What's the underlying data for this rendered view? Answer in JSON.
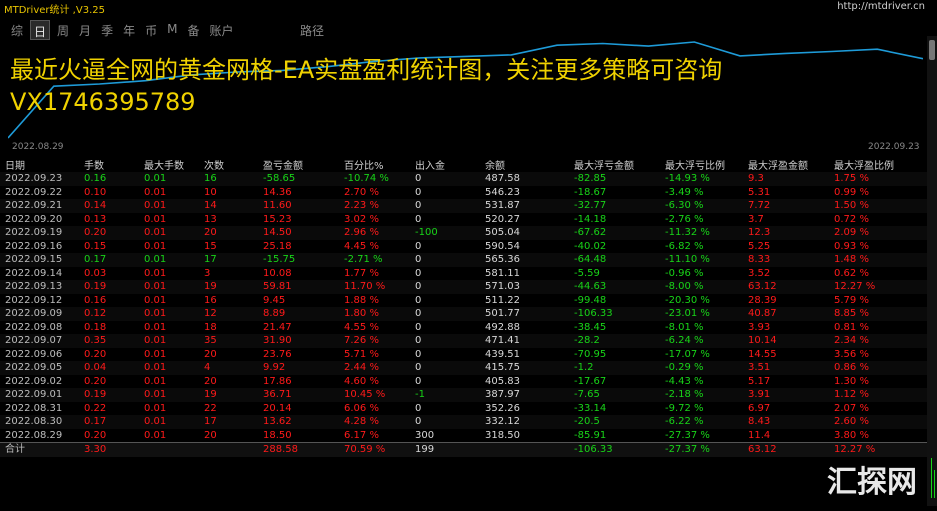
{
  "window": {
    "title": "MTDriver统计 ,V3.25",
    "url": "http://mtdriver.cn"
  },
  "tabs": [
    "综",
    "日",
    "周",
    "月",
    "季",
    "年",
    "币",
    "M",
    "备",
    "账户"
  ],
  "active_tab": "日",
  "path_tab": "路径",
  "chart": {
    "overlay_line1": "最近火逼全网的黄金网格-EA实盘盈利统计图，关注更多策略可咨询",
    "overlay_line2": "VX1746395789",
    "date_start": "2022.08.29",
    "date_end": "2022.09.23",
    "line_color": "#1e9bd8"
  },
  "table": {
    "headers": [
      "日期",
      "手数",
      "最大手数",
      "次数",
      "盈亏金额",
      "百分比%",
      "出入金",
      "余额",
      "最大浮亏金额",
      "最大浮亏比例",
      "最大浮盈金额",
      "最大浮盈比例"
    ],
    "rows": [
      [
        "2022.09.23",
        "0.16",
        "0.01",
        "16",
        "-58.65",
        "-10.74 %",
        "0",
        "487.58",
        "-82.85",
        "-14.93 %",
        "9.3",
        "1.75 %"
      ],
      [
        "2022.09.22",
        "0.10",
        "0.01",
        "10",
        "14.36",
        "2.70 %",
        "0",
        "546.23",
        "-18.67",
        "-3.49 %",
        "5.31",
        "0.99 %"
      ],
      [
        "2022.09.21",
        "0.14",
        "0.01",
        "14",
        "11.60",
        "2.23 %",
        "0",
        "531.87",
        "-32.77",
        "-6.30 %",
        "7.72",
        "1.50 %"
      ],
      [
        "2022.09.20",
        "0.13",
        "0.01",
        "13",
        "15.23",
        "3.02 %",
        "0",
        "520.27",
        "-14.18",
        "-2.76 %",
        "3.7",
        "0.72 %"
      ],
      [
        "2022.09.19",
        "0.20",
        "0.01",
        "20",
        "14.50",
        "2.96 %",
        "-100",
        "505.04",
        "-67.62",
        "-11.32 %",
        "12.3",
        "2.09 %"
      ],
      [
        "2022.09.16",
        "0.15",
        "0.01",
        "15",
        "25.18",
        "4.45 %",
        "0",
        "590.54",
        "-40.02",
        "-6.82 %",
        "5.25",
        "0.93 %"
      ],
      [
        "2022.09.15",
        "0.17",
        "0.01",
        "17",
        "-15.75",
        "-2.71 %",
        "0",
        "565.36",
        "-64.48",
        "-11.10 %",
        "8.33",
        "1.48 %"
      ],
      [
        "2022.09.14",
        "0.03",
        "0.01",
        "3",
        "10.08",
        "1.77 %",
        "0",
        "581.11",
        "-5.59",
        "-0.96 %",
        "3.52",
        "0.62 %"
      ],
      [
        "2022.09.13",
        "0.19",
        "0.01",
        "19",
        "59.81",
        "11.70 %",
        "0",
        "571.03",
        "-44.63",
        "-8.00 %",
        "63.12",
        "12.27 %"
      ],
      [
        "2022.09.12",
        "0.16",
        "0.01",
        "16",
        "9.45",
        "1.88 %",
        "0",
        "511.22",
        "-99.48",
        "-20.30 %",
        "28.39",
        "5.79 %"
      ],
      [
        "2022.09.09",
        "0.12",
        "0.01",
        "12",
        "8.89",
        "1.80 %",
        "0",
        "501.77",
        "-106.33",
        "-23.01 %",
        "40.87",
        "8.85 %"
      ],
      [
        "2022.09.08",
        "0.18",
        "0.01",
        "18",
        "21.47",
        "4.55 %",
        "0",
        "492.88",
        "-38.45",
        "-8.01 %",
        "3.93",
        "0.81 %"
      ],
      [
        "2022.09.07",
        "0.35",
        "0.01",
        "35",
        "31.90",
        "7.26 %",
        "0",
        "471.41",
        "-28.2",
        "-6.24 %",
        "10.14",
        "2.34 %"
      ],
      [
        "2022.09.06",
        "0.20",
        "0.01",
        "20",
        "23.76",
        "5.71 %",
        "0",
        "439.51",
        "-70.95",
        "-17.07 %",
        "14.55",
        "3.56 %"
      ],
      [
        "2022.09.05",
        "0.04",
        "0.01",
        "4",
        "9.92",
        "2.44 %",
        "0",
        "415.75",
        "-1.2",
        "-0.29 %",
        "3.51",
        "0.86 %"
      ],
      [
        "2022.09.02",
        "0.20",
        "0.01",
        "20",
        "17.86",
        "4.60 %",
        "0",
        "405.83",
        "-17.67",
        "-4.43 %",
        "5.17",
        "1.30 %"
      ],
      [
        "2022.09.01",
        "0.19",
        "0.01",
        "19",
        "36.71",
        "10.45 %",
        "-1",
        "387.97",
        "-7.65",
        "-2.18 %",
        "3.91",
        "1.12 %"
      ],
      [
        "2022.08.31",
        "0.22",
        "0.01",
        "22",
        "20.14",
        "6.06 %",
        "0",
        "352.26",
        "-33.14",
        "-9.72 %",
        "6.97",
        "2.07 %"
      ],
      [
        "2022.08.30",
        "0.17",
        "0.01",
        "17",
        "13.62",
        "4.28 %",
        "0",
        "332.12",
        "-20.5",
        "-6.22 %",
        "8.43",
        "2.60 %"
      ],
      [
        "2022.08.29",
        "0.20",
        "0.01",
        "20",
        "18.50",
        "6.17 %",
        "300",
        "318.50",
        "-85.91",
        "-27.37 %",
        "11.4",
        "3.80 %"
      ]
    ],
    "total": [
      "合计",
      "3.30",
      "",
      "",
      "288.58",
      "70.59 %",
      "199",
      "",
      "-106.33",
      "-27.37 %",
      "63.12",
      "12.27 %"
    ],
    "colors": {
      "positive": "#ff1a1a",
      "negative": "#18d418",
      "neutral": "#d8d8d8"
    }
  },
  "watermark": "汇探网"
}
